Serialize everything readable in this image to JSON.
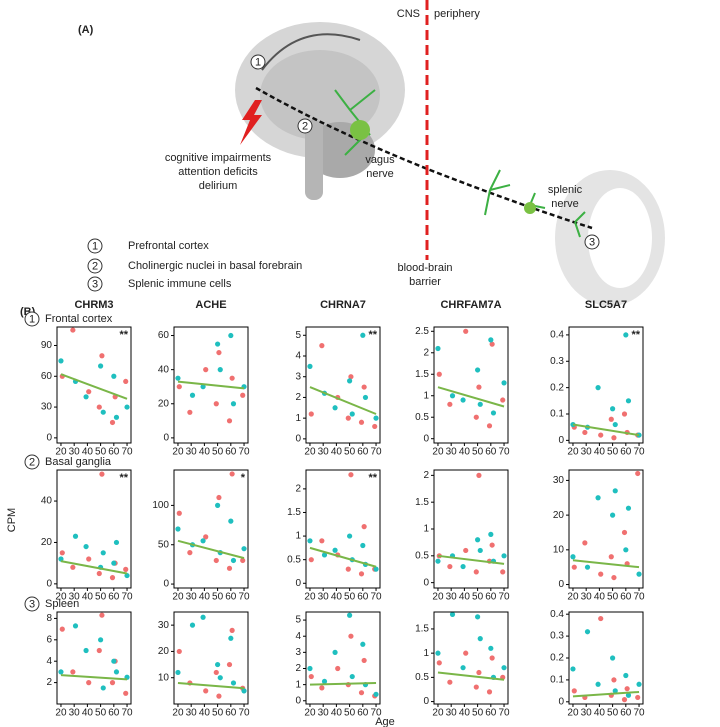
{
  "panel_a": {
    "label": "(A)",
    "cns": "CNS",
    "periphery": "periphery",
    "symptoms": [
      "cognitive impairments",
      "attention deficits",
      "delirium"
    ],
    "vagus": [
      "vagus",
      "nerve"
    ],
    "splenic": [
      "splenic",
      "nerve"
    ],
    "barrier": [
      "blood-brain",
      "barrier"
    ],
    "legend": [
      {
        "marker": "1",
        "label": "Prefrontal cortex"
      },
      {
        "marker": "2",
        "label": "Cholinergic nuclei in basal forebrain"
      },
      {
        "marker": "3",
        "label": "Splenic immune cells"
      }
    ]
  },
  "panel_b": {
    "label": "(B)",
    "columns": [
      "CHRM3",
      "ACHE",
      "CHRNA7",
      "CHRFAM7A",
      "SLC5A7"
    ],
    "rows": [
      {
        "marker": "1",
        "label": "Frontal cortex"
      },
      {
        "marker": "2",
        "label": "Basal ganglia"
      },
      {
        "marker": "3",
        "label": "Spleen"
      }
    ],
    "ylabel": "CPM",
    "xlabel": "Age"
  },
  "chart_data": [
    {
      "type": "scatter",
      "xlim": [
        17,
        73
      ],
      "xticks": [
        20,
        30,
        40,
        50,
        60,
        70
      ],
      "ylim": [
        -5,
        108
      ],
      "yticks": [
        0,
        30,
        60,
        90
      ],
      "annotation": "**",
      "fit": {
        "color": "#7ab648",
        "x": [
          20,
          70
        ],
        "values": [
          62,
          38
        ]
      },
      "series": [
        {
          "color": "#f07070",
          "x": [
            21,
            29,
            41,
            49,
            51,
            59,
            61,
            69
          ],
          "values": [
            60,
            105,
            45,
            30,
            80,
            15,
            40,
            55
          ]
        },
        {
          "color": "#1fbfbf",
          "x": [
            20,
            31,
            39,
            50,
            52,
            60,
            62,
            70
          ],
          "values": [
            75,
            55,
            40,
            70,
            25,
            60,
            20,
            30
          ]
        }
      ]
    },
    {
      "type": "scatter",
      "xlim": [
        17,
        73
      ],
      "xticks": [
        20,
        30,
        40,
        50,
        60,
        70
      ],
      "ylim": [
        -3,
        65
      ],
      "yticks": [
        0,
        20,
        40,
        60
      ],
      "fit": {
        "color": "#7ab648",
        "x": [
          20,
          70
        ],
        "values": [
          33,
          29
        ]
      },
      "series": [
        {
          "color": "#f07070",
          "x": [
            21,
            29,
            41,
            49,
            51,
            59,
            61,
            69
          ],
          "values": [
            30,
            15,
            40,
            20,
            50,
            10,
            35,
            25
          ]
        },
        {
          "color": "#1fbfbf",
          "x": [
            20,
            31,
            39,
            50,
            52,
            60,
            62,
            70
          ],
          "values": [
            35,
            25,
            30,
            55,
            40,
            60,
            20,
            30
          ]
        }
      ]
    },
    {
      "type": "scatter",
      "xlim": [
        17,
        73
      ],
      "xticks": [
        20,
        30,
        40,
        50,
        60,
        70
      ],
      "ylim": [
        -0.2,
        5.4
      ],
      "yticks": [
        0,
        1,
        2,
        3,
        4,
        5
      ],
      "annotation": "**",
      "fit": {
        "color": "#7ab648",
        "x": [
          20,
          70
        ],
        "values": [
          2.5,
          1.2
        ]
      },
      "series": [
        {
          "color": "#f07070",
          "x": [
            21,
            29,
            41,
            49,
            51,
            59,
            61,
            69
          ],
          "values": [
            1.2,
            4.5,
            2.0,
            1.0,
            3.0,
            0.8,
            2.5,
            0.6
          ]
        },
        {
          "color": "#1fbfbf",
          "x": [
            20,
            31,
            39,
            50,
            52,
            60,
            62,
            70
          ],
          "values": [
            3.5,
            2.2,
            1.5,
            2.8,
            1.2,
            5.0,
            2.0,
            1.0
          ]
        }
      ]
    },
    {
      "type": "scatter",
      "xlim": [
        17,
        73
      ],
      "xticks": [
        20,
        30,
        40,
        50,
        60,
        70
      ],
      "ylim": [
        -0.1,
        2.6
      ],
      "yticks": [
        0,
        0.5,
        1,
        1.5,
        2,
        2.5
      ],
      "fit": {
        "color": "#7ab648",
        "x": [
          20,
          70
        ],
        "values": [
          1.2,
          0.75
        ]
      },
      "series": [
        {
          "color": "#f07070",
          "x": [
            21,
            29,
            41,
            49,
            51,
            59,
            61,
            69
          ],
          "values": [
            1.5,
            0.8,
            2.5,
            0.5,
            1.2,
            0.3,
            2.2,
            0.9
          ]
        },
        {
          "color": "#1fbfbf",
          "x": [
            20,
            31,
            39,
            50,
            52,
            60,
            62,
            70
          ],
          "values": [
            2.1,
            1.0,
            0.9,
            1.6,
            0.8,
            2.3,
            0.6,
            1.3
          ]
        }
      ]
    },
    {
      "type": "scatter",
      "xlim": [
        17,
        73
      ],
      "xticks": [
        20,
        30,
        40,
        50,
        60,
        70
      ],
      "ylim": [
        -0.01,
        0.43
      ],
      "yticks": [
        0,
        0.1,
        0.2,
        0.3,
        0.4
      ],
      "annotation": "**",
      "fit": {
        "color": "#7ab648",
        "x": [
          20,
          70
        ],
        "values": [
          0.06,
          0.02
        ]
      },
      "series": [
        {
          "color": "#f07070",
          "x": [
            21,
            29,
            41,
            49,
            51,
            59,
            61,
            69
          ],
          "values": [
            0.05,
            0.03,
            0.02,
            0.08,
            0.01,
            0.1,
            0.03,
            0.02
          ]
        },
        {
          "color": "#1fbfbf",
          "x": [
            20,
            31,
            39,
            50,
            52,
            60,
            62,
            70
          ],
          "values": [
            0.06,
            0.05,
            0.2,
            0.12,
            0.06,
            0.4,
            0.15,
            0.02
          ]
        }
      ]
    },
    {
      "type": "scatter",
      "xlim": [
        17,
        73
      ],
      "xticks": [
        20,
        30,
        40,
        50,
        60,
        70
      ],
      "ylim": [
        -2,
        55
      ],
      "yticks": [
        0,
        20,
        40
      ],
      "annotation": "**",
      "fit": {
        "color": "#7ab648",
        "x": [
          20,
          70
        ],
        "values": [
          11,
          5
        ]
      },
      "series": [
        {
          "color": "#f07070",
          "x": [
            21,
            29,
            41,
            49,
            51,
            59,
            61,
            69
          ],
          "values": [
            15,
            8,
            12,
            5,
            53,
            3,
            10,
            7
          ]
        },
        {
          "color": "#1fbfbf",
          "x": [
            20,
            31,
            39,
            50,
            52,
            60,
            62,
            70
          ],
          "values": [
            12,
            23,
            18,
            8,
            15,
            10,
            20,
            4
          ]
        }
      ]
    },
    {
      "type": "scatter",
      "xlim": [
        17,
        73
      ],
      "xticks": [
        20,
        30,
        40,
        50,
        60,
        70
      ],
      "ylim": [
        -5,
        145
      ],
      "yticks": [
        0,
        50,
        100
      ],
      "annotation": "*",
      "fit": {
        "color": "#7ab648",
        "x": [
          20,
          70
        ],
        "values": [
          55,
          33
        ]
      },
      "series": [
        {
          "color": "#f07070",
          "x": [
            21,
            29,
            41,
            49,
            51,
            59,
            61,
            69
          ],
          "values": [
            90,
            40,
            60,
            30,
            110,
            20,
            140,
            30
          ]
        },
        {
          "color": "#1fbfbf",
          "x": [
            20,
            31,
            39,
            50,
            52,
            60,
            62,
            70
          ],
          "values": [
            70,
            50,
            55,
            100,
            40,
            80,
            30,
            45
          ]
        }
      ]
    },
    {
      "type": "scatter",
      "xlim": [
        17,
        73
      ],
      "xticks": [
        20,
        30,
        40,
        50,
        60,
        70
      ],
      "ylim": [
        -0.1,
        2.4
      ],
      "yticks": [
        0,
        0.5,
        1,
        1.5,
        2
      ],
      "annotation": "**",
      "fit": {
        "color": "#7ab648",
        "x": [
          20,
          70
        ],
        "values": [
          0.75,
          0.35
        ]
      },
      "series": [
        {
          "color": "#f07070",
          "x": [
            21,
            29,
            41,
            49,
            51,
            59,
            61,
            69
          ],
          "values": [
            0.5,
            0.9,
            0.6,
            0.3,
            2.3,
            0.2,
            1.2,
            0.3
          ]
        },
        {
          "color": "#1fbfbf",
          "x": [
            20,
            31,
            39,
            50,
            52,
            60,
            62,
            70
          ],
          "values": [
            0.9,
            0.6,
            0.7,
            1.0,
            0.5,
            0.8,
            0.4,
            0.3
          ]
        }
      ]
    },
    {
      "type": "scatter",
      "xlim": [
        17,
        73
      ],
      "xticks": [
        20,
        30,
        40,
        50,
        60,
        70
      ],
      "ylim": [
        -0.1,
        2.1
      ],
      "yticks": [
        0,
        0.5,
        1,
        1.5,
        2
      ],
      "fit": {
        "color": "#7ab648",
        "x": [
          20,
          70
        ],
        "values": [
          0.5,
          0.35
        ]
      },
      "series": [
        {
          "color": "#f07070",
          "x": [
            21,
            29,
            41,
            49,
            51,
            59,
            61,
            69
          ],
          "values": [
            0.5,
            0.3,
            0.6,
            0.2,
            2.0,
            0.4,
            0.7,
            0.2
          ]
        },
        {
          "color": "#1fbfbf",
          "x": [
            20,
            31,
            39,
            50,
            52,
            60,
            62,
            70
          ],
          "values": [
            0.4,
            0.5,
            0.3,
            0.8,
            0.6,
            0.9,
            0.4,
            0.5
          ]
        }
      ]
    },
    {
      "type": "scatter",
      "xlim": [
        17,
        73
      ],
      "xticks": [
        20,
        30,
        40,
        50,
        60,
        70
      ],
      "ylim": [
        -1,
        33
      ],
      "yticks": [
        0,
        10,
        20,
        30
      ],
      "fit": {
        "color": "#7ab648",
        "x": [
          20,
          70
        ],
        "values": [
          7,
          5
        ]
      },
      "series": [
        {
          "color": "#f07070",
          "x": [
            21,
            29,
            41,
            49,
            51,
            59,
            61,
            69
          ],
          "values": [
            5,
            12,
            3,
            8,
            2,
            15,
            6,
            32
          ]
        },
        {
          "color": "#1fbfbf",
          "x": [
            20,
            31,
            39,
            50,
            52,
            60,
            62,
            70
          ],
          "values": [
            8,
            5,
            25,
            20,
            27,
            10,
            22,
            3
          ]
        }
      ]
    },
    {
      "type": "scatter",
      "xlim": [
        17,
        73
      ],
      "xticks": [
        20,
        30,
        40,
        50,
        60,
        70
      ],
      "ylim": [
        0,
        8.6
      ],
      "yticks": [
        2,
        4,
        6,
        8
      ],
      "fit": {
        "color": "#7ab648",
        "x": [
          20,
          70
        ],
        "values": [
          2.7,
          2.3
        ]
      },
      "series": [
        {
          "color": "#f07070",
          "x": [
            21,
            29,
            41,
            49,
            51,
            59,
            61,
            69
          ],
          "values": [
            7,
            3,
            2,
            5,
            8.3,
            2,
            4,
            1
          ]
        },
        {
          "color": "#1fbfbf",
          "x": [
            20,
            31,
            39,
            50,
            52,
            60,
            62,
            70
          ],
          "values": [
            3,
            7.3,
            5,
            6,
            1.5,
            4,
            3,
            2.5
          ]
        }
      ]
    },
    {
      "type": "scatter",
      "xlim": [
        17,
        73
      ],
      "xticks": [
        20,
        30,
        40,
        50,
        60,
        70
      ],
      "ylim": [
        0,
        35
      ],
      "yticks": [
        10,
        20,
        30
      ],
      "fit": {
        "color": "#7ab648",
        "x": [
          20,
          70
        ],
        "values": [
          8,
          6
        ]
      },
      "series": [
        {
          "color": "#f07070",
          "x": [
            21,
            29,
            41,
            49,
            51,
            59,
            61,
            69
          ],
          "values": [
            20,
            8,
            5,
            12,
            3,
            15,
            28,
            6
          ]
        },
        {
          "color": "#1fbfbf",
          "x": [
            20,
            31,
            39,
            50,
            52,
            60,
            62,
            70
          ],
          "values": [
            12,
            30,
            33,
            15,
            10,
            25,
            8,
            5
          ]
        }
      ]
    },
    {
      "type": "scatter",
      "xlim": [
        17,
        73
      ],
      "xticks": [
        20,
        30,
        40,
        50,
        60,
        70
      ],
      "ylim": [
        -0.2,
        5.5
      ],
      "yticks": [
        0,
        1,
        2,
        3,
        4,
        5
      ],
      "fit": {
        "color": "#7ab648",
        "x": [
          20,
          70
        ],
        "values": [
          1.0,
          1.1
        ]
      },
      "series": [
        {
          "color": "#f07070",
          "x": [
            21,
            29,
            41,
            49,
            51,
            59,
            61,
            69
          ],
          "values": [
            1.5,
            0.8,
            2.0,
            1.0,
            4.0,
            0.5,
            2.5,
            0.3
          ]
        },
        {
          "color": "#1fbfbf",
          "x": [
            20,
            31,
            39,
            50,
            52,
            60,
            62,
            70
          ],
          "values": [
            2.0,
            1.2,
            3.0,
            5.3,
            1.5,
            3.5,
            1.0,
            0.4
          ]
        }
      ]
    },
    {
      "type": "scatter",
      "xlim": [
        17,
        73
      ],
      "xticks": [
        20,
        30,
        40,
        50,
        60,
        70
      ],
      "ylim": [
        -0.05,
        1.85
      ],
      "yticks": [
        0,
        0.5,
        1,
        1.5
      ],
      "fit": {
        "color": "#7ab648",
        "x": [
          20,
          70
        ],
        "values": [
          0.6,
          0.45
        ]
      },
      "series": [
        {
          "color": "#f07070",
          "x": [
            21,
            29,
            41,
            49,
            51,
            59,
            61,
            69
          ],
          "values": [
            0.8,
            0.4,
            1.0,
            0.3,
            0.6,
            0.2,
            0.9,
            0.5
          ]
        },
        {
          "color": "#1fbfbf",
          "x": [
            20,
            31,
            39,
            50,
            52,
            60,
            62,
            70
          ],
          "values": [
            1.0,
            1.8,
            0.7,
            1.75,
            1.3,
            1.1,
            0.5,
            0.7
          ]
        }
      ]
    },
    {
      "type": "scatter",
      "xlim": [
        17,
        73
      ],
      "xticks": [
        20,
        30,
        40,
        50,
        60,
        70
      ],
      "ylim": [
        -0.01,
        0.41
      ],
      "yticks": [
        0,
        0.1,
        0.2,
        0.3,
        0.4
      ],
      "fit": {
        "color": "#7ab648",
        "x": [
          20,
          70
        ],
        "values": [
          0.025,
          0.045
        ]
      },
      "series": [
        {
          "color": "#f07070",
          "x": [
            21,
            29,
            41,
            49,
            51,
            59,
            61,
            69
          ],
          "values": [
            0.05,
            0.02,
            0.38,
            0.03,
            0.1,
            0.01,
            0.06,
            0.02
          ]
        },
        {
          "color": "#1fbfbf",
          "x": [
            20,
            31,
            39,
            50,
            52,
            60,
            62,
            70
          ],
          "values": [
            0.15,
            0.32,
            0.08,
            0.2,
            0.05,
            0.12,
            0.03,
            0.08
          ]
        }
      ]
    }
  ]
}
